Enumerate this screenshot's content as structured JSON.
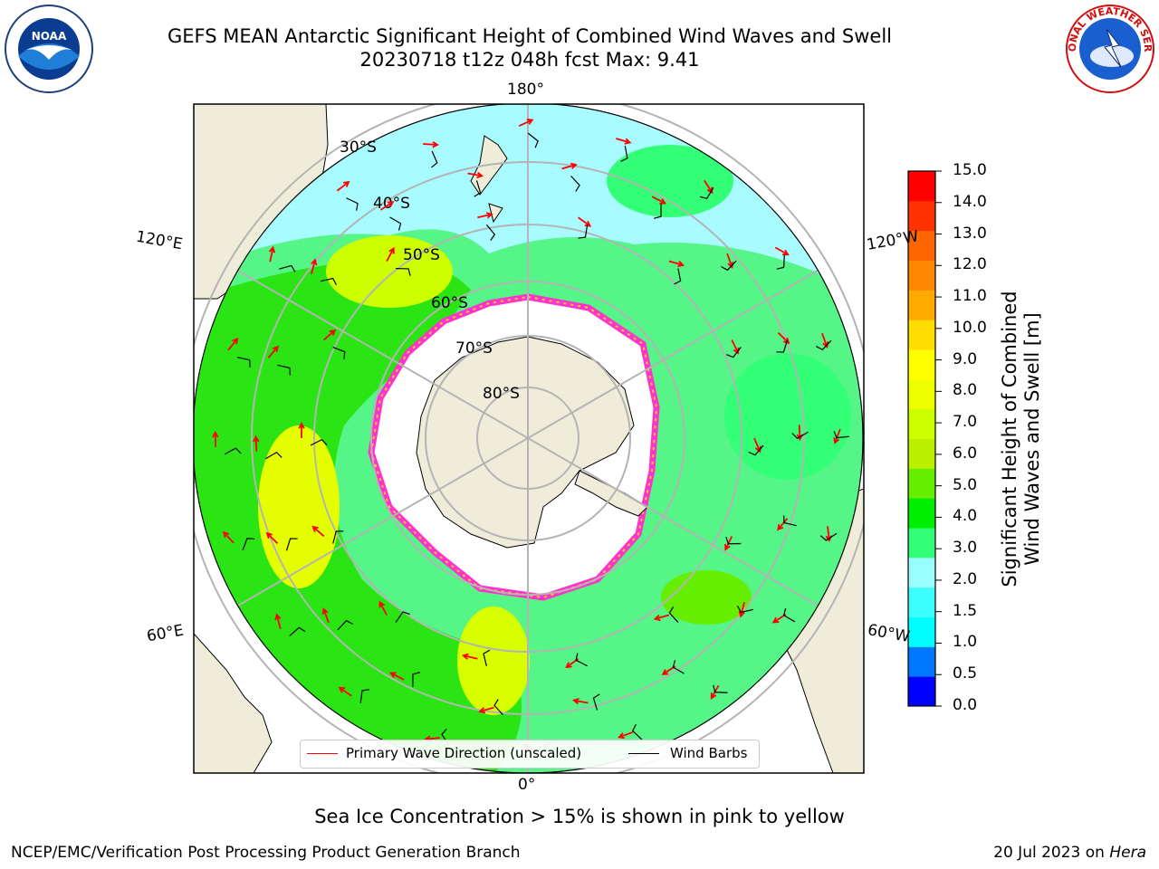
{
  "title": {
    "line1": "GEFS MEAN Antarctic Significant Height of Combined Wind Waves and Swell",
    "line2": "20230718 t12z 048h fcst   Max: 9.41"
  },
  "logos": {
    "left": "noaa-logo",
    "right": "nws-logo"
  },
  "map": {
    "projection": "south-polar-stereographic",
    "longitude_labels": {
      "top": "180°",
      "bottom": "0°",
      "left_upper": "120°E",
      "left_lower": "60°E",
      "right_upper": "120°W",
      "right_lower": "60°W"
    },
    "latitude_labels": [
      "30°S",
      "40°S",
      "50°S",
      "60°S",
      "70°S",
      "80°S"
    ],
    "land_color": "#efedd9",
    "ice_edge_colors": [
      "#ff33cc",
      "#ffcc33"
    ]
  },
  "colorbar": {
    "title_line1": "Significant Height of Combined",
    "title_line2": "Wind Waves and Swell [m]",
    "ticks": [
      "15.0",
      "14.0",
      "13.0",
      "12.0",
      "11.0",
      "10.0",
      "9.0",
      "8.0",
      "7.0",
      "6.0",
      "5.0",
      "4.0",
      "3.0",
      "2.0",
      "1.5",
      "1.0",
      "0.5",
      "0.0"
    ],
    "colors": [
      "#0000ff",
      "#0077ff",
      "#00ffff",
      "#3dffff",
      "#99ffff",
      "#33ff77",
      "#00ee00",
      "#66ee00",
      "#bbf000",
      "#ccff00",
      "#eeff00",
      "#ffff00",
      "#ffdd00",
      "#ffaa00",
      "#ff8800",
      "#ff6600",
      "#ff3300",
      "#ff0000"
    ]
  },
  "legend": {
    "wave_label": "Primary Wave Direction (unscaled)",
    "wave_color": "#ff0000",
    "barb_label": "Wind Barbs",
    "barb_color": "#000000"
  },
  "note": "Sea Ice Concentration > 15% is shown in pink to yellow",
  "footer": {
    "left": "NCEP/EMC/Verification Post Processing Product Generation Branch",
    "right_date": "20 Jul 2023 on ",
    "right_machine": "Hera"
  }
}
